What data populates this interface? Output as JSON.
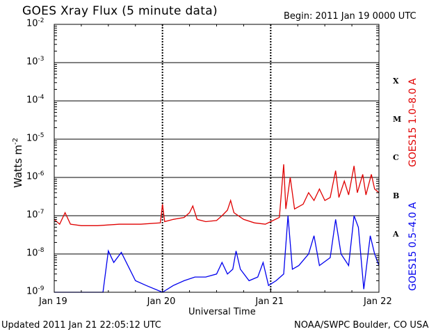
{
  "header": {
    "title": "GOES Xray Flux (5 minute data)",
    "begin": "Begin:  2011 Jan 19 0000 UTC"
  },
  "footer": {
    "updated": "Updated 2011 Jan 21 22:05:12 UTC",
    "credit": "NOAA/SWPC Boulder, CO USA"
  },
  "axes": {
    "ylabel": "Watts m",
    "ylabel_exp": "-2",
    "xlabel": "Universal Time"
  },
  "colors": {
    "long": "#e00000",
    "short": "#0000ee",
    "grid": "#000000"
  },
  "chart_data": {
    "type": "line",
    "yscale": "log",
    "ylim": [
      1e-09,
      0.01
    ],
    "y_ticks": [
      {
        "base": "10",
        "exp": "-9",
        "value": 1e-09
      },
      {
        "base": "10",
        "exp": "-8",
        "value": 1e-08
      },
      {
        "base": "10",
        "exp": "-7",
        "value": 1e-07
      },
      {
        "base": "10",
        "exp": "-6",
        "value": 1e-06
      },
      {
        "base": "10",
        "exp": "-5",
        "value": 1e-05
      },
      {
        "base": "10",
        "exp": "-4",
        "value": 0.0001
      },
      {
        "base": "10",
        "exp": "-3",
        "value": 0.001
      },
      {
        "base": "10",
        "exp": "-2",
        "value": 0.01
      }
    ],
    "x_ticks": [
      "Jan 19",
      "Jan 20",
      "Jan 21",
      "Jan 22"
    ],
    "xlim_days": [
      0,
      3
    ],
    "flare_classes": [
      {
        "label": "A",
        "value": 1e-08
      },
      {
        "label": "B",
        "value": 1e-07
      },
      {
        "label": "C",
        "value": 1e-06
      },
      {
        "label": "M",
        "value": 1e-05
      },
      {
        "label": "X",
        "value": 0.0001
      }
    ],
    "grid": true,
    "series": [
      {
        "name": "GOES15 1.0–8.0 A",
        "points": [
          [
            0.0,
            8e-08
          ],
          [
            0.05,
            6e-08
          ],
          [
            0.1,
            1.2e-07
          ],
          [
            0.15,
            6e-08
          ],
          [
            0.25,
            5.5e-08
          ],
          [
            0.4,
            5.5e-08
          ],
          [
            0.6,
            6e-08
          ],
          [
            0.8,
            6e-08
          ],
          [
            0.98,
            6.5e-08
          ],
          [
            1.0,
            2e-07
          ],
          [
            1.02,
            7e-08
          ],
          [
            1.1,
            8e-08
          ],
          [
            1.2,
            9e-08
          ],
          [
            1.25,
            1.2e-07
          ],
          [
            1.28,
            1.8e-07
          ],
          [
            1.32,
            8e-08
          ],
          [
            1.4,
            7e-08
          ],
          [
            1.5,
            7.5e-08
          ],
          [
            1.55,
            1e-07
          ],
          [
            1.6,
            1.4e-07
          ],
          [
            1.63,
            2.5e-07
          ],
          [
            1.66,
            1.2e-07
          ],
          [
            1.75,
            8e-08
          ],
          [
            1.85,
            6.5e-08
          ],
          [
            1.95,
            6e-08
          ],
          [
            2.0,
            7e-08
          ],
          [
            2.08,
            9e-08
          ],
          [
            2.12,
            2.2e-06
          ],
          [
            2.14,
            1.5e-07
          ],
          [
            2.18,
            1e-06
          ],
          [
            2.22,
            1.5e-07
          ],
          [
            2.3,
            2e-07
          ],
          [
            2.35,
            4e-07
          ],
          [
            2.4,
            2.5e-07
          ],
          [
            2.45,
            5e-07
          ],
          [
            2.5,
            2.5e-07
          ],
          [
            2.55,
            3e-07
          ],
          [
            2.6,
            1.5e-06
          ],
          [
            2.63,
            3e-07
          ],
          [
            2.68,
            8e-07
          ],
          [
            2.72,
            3.5e-07
          ],
          [
            2.77,
            2e-06
          ],
          [
            2.8,
            4e-07
          ],
          [
            2.85,
            1.2e-06
          ],
          [
            2.88,
            3.5e-07
          ],
          [
            2.93,
            1.2e-06
          ],
          [
            2.96,
            5e-07
          ],
          [
            3.0,
            4e-07
          ]
        ]
      },
      {
        "name": "GOES15 0.5–4.0 A",
        "points": [
          [
            0.0,
            1e-09
          ],
          [
            0.45,
            1e-09
          ],
          [
            0.5,
            1.2e-08
          ],
          [
            0.55,
            6e-09
          ],
          [
            0.62,
            1.1e-08
          ],
          [
            0.68,
            5e-09
          ],
          [
            0.75,
            2e-09
          ],
          [
            0.85,
            1.5e-09
          ],
          [
            1.0,
            1e-09
          ],
          [
            1.1,
            1.5e-09
          ],
          [
            1.2,
            2e-09
          ],
          [
            1.3,
            2.5e-09
          ],
          [
            1.4,
            2.5e-09
          ],
          [
            1.5,
            3e-09
          ],
          [
            1.55,
            6e-09
          ],
          [
            1.6,
            3e-09
          ],
          [
            1.65,
            4e-09
          ],
          [
            1.68,
            1.2e-08
          ],
          [
            1.72,
            4e-09
          ],
          [
            1.8,
            2e-09
          ],
          [
            1.88,
            2.5e-09
          ],
          [
            1.93,
            6e-09
          ],
          [
            1.98,
            1.5e-09
          ],
          [
            2.05,
            2e-09
          ],
          [
            2.12,
            3e-09
          ],
          [
            2.16,
            1e-07
          ],
          [
            2.2,
            4e-09
          ],
          [
            2.26,
            5e-09
          ],
          [
            2.35,
            1e-08
          ],
          [
            2.4,
            3e-08
          ],
          [
            2.45,
            5e-09
          ],
          [
            2.55,
            8e-09
          ],
          [
            2.6,
            8e-08
          ],
          [
            2.65,
            1e-08
          ],
          [
            2.72,
            5e-09
          ],
          [
            2.77,
            1e-07
          ],
          [
            2.81,
            5e-08
          ],
          [
            2.86,
            1.2e-09
          ],
          [
            2.92,
            3e-08
          ],
          [
            2.96,
            1e-08
          ],
          [
            3.0,
            5e-09
          ]
        ]
      }
    ]
  }
}
